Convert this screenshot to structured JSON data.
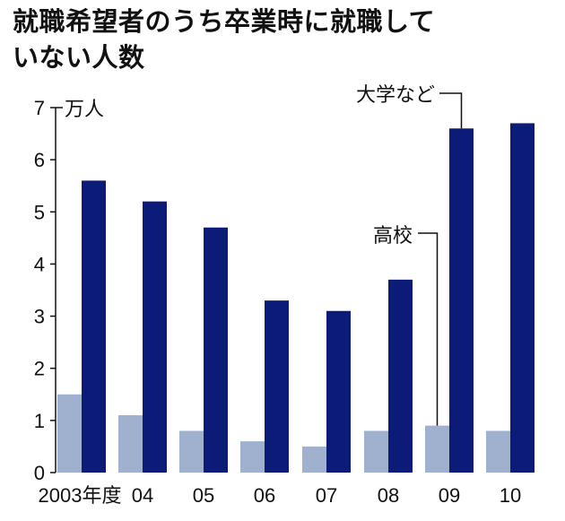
{
  "chart_data": {
    "type": "bar",
    "title_lines": [
      "就職希望者のうち卒業時に就職して",
      "いない人数"
    ],
    "unit": "万人",
    "categories": [
      "2003年度",
      "04",
      "05",
      "06",
      "07",
      "08",
      "09",
      "10"
    ],
    "series": [
      {
        "name": "高校",
        "color": "#9fb1cf",
        "values": [
          1.5,
          1.1,
          0.8,
          0.6,
          0.5,
          0.8,
          0.9,
          0.8
        ]
      },
      {
        "name": "大学など",
        "color": "#0c1a78",
        "values": [
          5.6,
          5.2,
          4.7,
          3.3,
          3.1,
          3.7,
          6.6,
          6.7
        ]
      }
    ],
    "yticks": [
      "0",
      "1",
      "2",
      "3",
      "4",
      "5",
      "6",
      "7"
    ],
    "ylim": [
      0,
      7
    ],
    "grid": false,
    "annotations": [
      {
        "label": "大学など",
        "series": "大学など",
        "category": "09"
      },
      {
        "label": "高校",
        "series": "高校",
        "category": "09"
      }
    ]
  }
}
